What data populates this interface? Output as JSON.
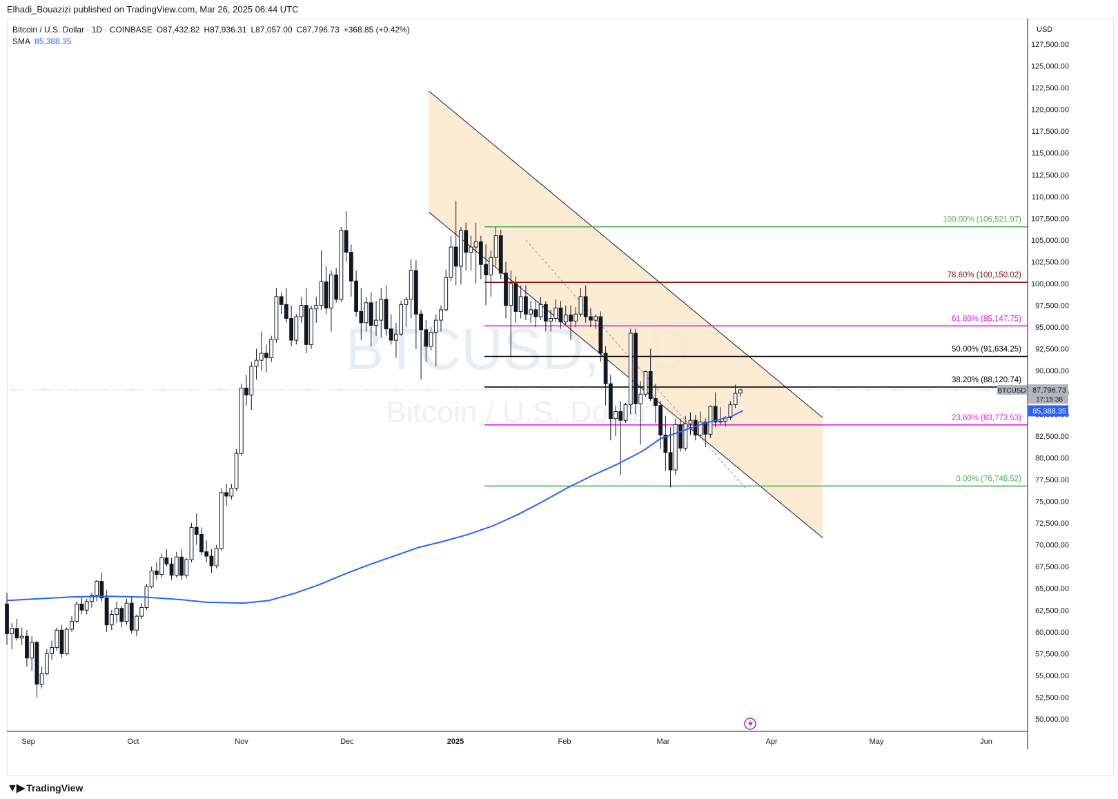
{
  "publisher": "Elhadi_Bouazizi published on TradingView.com, Mar 26, 2025 06:44 UTC",
  "brand": "TradingView",
  "legend": {
    "symbol": "Bitcoin / U.S. Dollar · 1D · COINBASE",
    "open": "O87,432.82",
    "high": "H87,936.31",
    "low": "L87,057.00",
    "close": "C87,796.73",
    "change": "+368.85 (+0.42%)",
    "sma_label": "SMA",
    "sma_value": "85,388.35"
  },
  "watermark": {
    "ticker": "BTCUSD, 1D",
    "name": "Bitcoin / U.S. Dollar"
  },
  "colors": {
    "up": "#131722",
    "down": "#131722",
    "sma": "#2962ff",
    "channel": "#fde9cd",
    "fib_green": "#4caf50",
    "fib_red": "#880e0e",
    "fib_magenta": "#e91ee3",
    "fib_black": "#000000",
    "price_badge": "#b2b5be"
  },
  "chart_data": {
    "type": "candlestick",
    "currency": "USD",
    "y_axis": {
      "min": 49000,
      "max": 129000,
      "ticks": [
        50000,
        52500,
        55000,
        57500,
        60000,
        62500,
        65000,
        67500,
        70000,
        72500,
        75000,
        77500,
        80000,
        82500,
        85000,
        87500,
        90000,
        92500,
        95000,
        97500,
        100000,
        102500,
        105000,
        107500,
        110000,
        112500,
        115000,
        117500,
        120000,
        122500,
        125000,
        127500
      ]
    },
    "x_axis": {
      "labels": [
        "Sep",
        "Oct",
        "Nov",
        "Dec",
        "2025",
        "Feb",
        "Mar",
        "Apr",
        "May",
        "Jun"
      ]
    },
    "current_price": {
      "label": "BTCUSD",
      "value": "87,796.73",
      "countdown": "17:15:38",
      "price": 87796.73
    },
    "sma": {
      "label": "SMA",
      "value": "85,388.35",
      "price": 85388.35,
      "points": [
        [
          0,
          63600
        ],
        [
          12,
          63800
        ],
        [
          25,
          64000
        ],
        [
          40,
          64100
        ],
        [
          55,
          64000
        ],
        [
          70,
          63700
        ],
        [
          80,
          63400
        ],
        [
          95,
          63300
        ],
        [
          105,
          63600
        ],
        [
          115,
          64400
        ],
        [
          125,
          65400
        ],
        [
          135,
          66600
        ],
        [
          145,
          67700
        ],
        [
          155,
          68700
        ],
        [
          165,
          69700
        ],
        [
          175,
          70400
        ],
        [
          185,
          71200
        ],
        [
          195,
          72200
        ],
        [
          205,
          73500
        ],
        [
          215,
          75000
        ],
        [
          225,
          76600
        ],
        [
          235,
          78000
        ],
        [
          245,
          79300
        ],
        [
          255,
          80800
        ],
        [
          262,
          82200
        ],
        [
          270,
          83000
        ],
        [
          280,
          84000
        ],
        [
          290,
          84700
        ],
        [
          295,
          85400
        ]
      ]
    },
    "candles": [
      [
        0,
        63200,
        64500,
        58500,
        59800
      ],
      [
        1,
        59800,
        61000,
        58000,
        60400
      ],
      [
        2,
        60400,
        61500,
        59000,
        59300
      ],
      [
        3,
        59300,
        60500,
        58500,
        59500
      ],
      [
        4,
        59500,
        60200,
        56000,
        57000
      ],
      [
        5,
        57000,
        59500,
        55500,
        58800
      ],
      [
        6,
        58800,
        59000,
        52500,
        54000
      ],
      [
        7,
        54000,
        56000,
        53500,
        55200
      ],
      [
        8,
        55200,
        58000,
        55000,
        57500
      ],
      [
        9,
        57500,
        59000,
        56800,
        58200
      ],
      [
        10,
        58200,
        60500,
        57800,
        60200
      ],
      [
        11,
        60200,
        60800,
        57000,
        57500
      ],
      [
        12,
        57500,
        60500,
        57300,
        60300
      ],
      [
        13,
        60300,
        61800,
        60000,
        61200
      ],
      [
        14,
        61200,
        63500,
        61000,
        63200
      ],
      [
        15,
        63200,
        64000,
        62000,
        62500
      ],
      [
        16,
        62500,
        63800,
        62000,
        63500
      ],
      [
        17,
        63500,
        64500,
        62800,
        64200
      ],
      [
        18,
        64200,
        66000,
        63500,
        65800
      ],
      [
        19,
        65800,
        66800,
        63500,
        63900
      ],
      [
        20,
        63900,
        64800,
        60000,
        60800
      ],
      [
        21,
        60800,
        62500,
        60200,
        62000
      ],
      [
        22,
        62000,
        63500,
        61000,
        62700
      ],
      [
        23,
        62700,
        63000,
        60500,
        61200
      ],
      [
        24,
        61200,
        63800,
        60800,
        63300
      ],
      [
        25,
        63300,
        64000,
        59800,
        60200
      ],
      [
        26,
        60200,
        62000,
        59500,
        61800
      ],
      [
        27,
        61800,
        63300,
        61500,
        62800
      ],
      [
        28,
        62800,
        65500,
        62500,
        65200
      ],
      [
        29,
        65200,
        67500,
        65000,
        67000
      ],
      [
        30,
        67000,
        68000,
        66000,
        66600
      ],
      [
        31,
        66600,
        69000,
        66200,
        68500
      ],
      [
        32,
        68500,
        69500,
        67500,
        67800
      ],
      [
        33,
        67800,
        68500,
        66000,
        66500
      ],
      [
        34,
        66500,
        69200,
        66200,
        68600
      ],
      [
        35,
        68600,
        69500,
        66000,
        66500
      ],
      [
        36,
        66500,
        68500,
        66200,
        68300
      ],
      [
        37,
        68300,
        72500,
        68000,
        72000
      ],
      [
        38,
        72000,
        73600,
        70000,
        71200
      ],
      [
        39,
        71200,
        72000,
        68800,
        69200
      ],
      [
        40,
        69200,
        70500,
        68000,
        68700
      ],
      [
        41,
        68700,
        69500,
        66800,
        67600
      ],
      [
        42,
        67600,
        70000,
        67300,
        69600
      ],
      [
        43,
        69600,
        76500,
        69300,
        76000
      ],
      [
        44,
        76000,
        77000,
        74500,
        75600
      ],
      [
        45,
        75600,
        77000,
        75200,
        76500
      ],
      [
        46,
        76500,
        81000,
        76200,
        80500
      ],
      [
        47,
        80500,
        88500,
        80200,
        88000
      ],
      [
        48,
        88000,
        89500,
        86000,
        87200
      ],
      [
        49,
        87200,
        91000,
        85500,
        90500
      ],
      [
        50,
        90500,
        92500,
        89000,
        91200
      ],
      [
        51,
        91200,
        94500,
        90000,
        92000
      ],
      [
        52,
        92000,
        93000,
        89800,
        91500
      ],
      [
        53,
        91500,
        94000,
        91000,
        93600
      ],
      [
        54,
        93600,
        99500,
        93200,
        98500
      ],
      [
        55,
        98500,
        99000,
        96500,
        97600
      ],
      [
        56,
        97600,
        99500,
        95500,
        96000
      ],
      [
        57,
        96000,
        97500,
        92800,
        93500
      ],
      [
        58,
        93500,
        96500,
        93000,
        96200
      ],
      [
        59,
        96200,
        98500,
        95500,
        97500
      ],
      [
        60,
        97500,
        99500,
        92000,
        93000
      ],
      [
        61,
        93000,
        97500,
        92500,
        97100
      ],
      [
        62,
        97100,
        98500,
        95500,
        97500
      ],
      [
        63,
        97500,
        103800,
        97000,
        100200
      ],
      [
        64,
        100200,
        102000,
        96500,
        97200
      ],
      [
        65,
        97200,
        101500,
        94500,
        101000
      ],
      [
        66,
        101000,
        101800,
        97800,
        98200
      ],
      [
        67,
        98200,
        106500,
        97900,
        106100
      ],
      [
        68,
        106100,
        108300,
        102500,
        103600
      ],
      [
        69,
        103600,
        104500,
        98500,
        100300
      ],
      [
        70,
        100300,
        101500,
        96200,
        96800
      ],
      [
        71,
        96800,
        99500,
        93500,
        95500
      ],
      [
        72,
        95500,
        98500,
        94500,
        97800
      ],
      [
        73,
        97800,
        99000,
        92800,
        95200
      ],
      [
        74,
        95200,
        98000,
        94000,
        95800
      ],
      [
        75,
        95800,
        99500,
        93800,
        98200
      ],
      [
        76,
        98200,
        99800,
        94000,
        94800
      ],
      [
        77,
        94800,
        96500,
        93000,
        93500
      ],
      [
        78,
        93500,
        95500,
        91500,
        94200
      ],
      [
        79,
        94200,
        98000,
        94000,
        97600
      ],
      [
        80,
        97600,
        98500,
        95000,
        98200
      ],
      [
        81,
        98200,
        102800,
        96000,
        101500
      ],
      [
        82,
        101500,
        102700,
        92500,
        96500
      ],
      [
        83,
        96500,
        97000,
        89000,
        94700
      ],
      [
        84,
        94700,
        95800,
        91000,
        92800
      ],
      [
        85,
        92800,
        95000,
        92300,
        94400
      ],
      [
        86,
        94400,
        96500,
        90500,
        95800
      ],
      [
        87,
        95800,
        97500,
        94500,
        97000
      ],
      [
        88,
        97000,
        101600,
        96800,
        100700
      ],
      [
        89,
        100700,
        105500,
        100300,
        104200
      ],
      [
        90,
        104200,
        109500,
        99800,
        102000
      ],
      [
        91,
        102000,
        106500,
        99900,
        106100
      ],
      [
        92,
        106100,
        107000,
        101500,
        103600
      ],
      [
        93,
        103600,
        105500,
        101500,
        104200
      ],
      [
        94,
        104200,
        107000,
        100000,
        104800
      ],
      [
        95,
        104800,
        105500,
        100500,
        102200
      ],
      [
        96,
        102200,
        104500,
        97500,
        101000
      ],
      [
        97,
        101000,
        103800,
        98500,
        103000
      ],
      [
        98,
        103000,
        106500,
        102000,
        105500
      ],
      [
        99,
        105500,
        106200,
        100500,
        101200
      ],
      [
        100,
        101200,
        102500,
        96000,
        97500
      ],
      [
        101,
        97500,
        101500,
        91500,
        100000
      ],
      [
        102,
        100000,
        100800,
        95500,
        96800
      ],
      [
        103,
        96800,
        99800,
        96000,
        98500
      ],
      [
        104,
        98500,
        99800,
        95800,
        96500
      ],
      [
        105,
        96500,
        98000,
        95500,
        97000
      ],
      [
        106,
        97000,
        98000,
        95000,
        96200
      ],
      [
        107,
        96200,
        98500,
        95800,
        97600
      ],
      [
        108,
        97600,
        98000,
        94500,
        95700
      ],
      [
        109,
        95700,
        97000,
        94500,
        96000
      ],
      [
        110,
        96000,
        98200,
        95600,
        97200
      ],
      [
        111,
        97200,
        98000,
        94800,
        95600
      ],
      [
        112,
        95600,
        97500,
        95200,
        96400
      ],
      [
        113,
        96400,
        97500,
        93500,
        95700
      ],
      [
        114,
        95700,
        97300,
        95000,
        96500
      ],
      [
        115,
        96500,
        99500,
        96200,
        98500
      ],
      [
        116,
        98500,
        99800,
        95500,
        96200
      ],
      [
        117,
        96200,
        97200,
        95000,
        95800
      ],
      [
        118,
        95800,
        96500,
        94800,
        96200
      ],
      [
        119,
        96200,
        96800,
        91000,
        92000
      ],
      [
        120,
        92000,
        92800,
        86000,
        88500
      ],
      [
        121,
        88500,
        89500,
        82000,
        84500
      ],
      [
        122,
        84500,
        86000,
        82500,
        85300
      ],
      [
        123,
        85300,
        86500,
        78000,
        84300
      ],
      [
        124,
        84300,
        86300,
        84000,
        86100
      ],
      [
        125,
        86100,
        94800,
        85000,
        94300
      ],
      [
        126,
        94300,
        94800,
        85000,
        86200
      ],
      [
        127,
        86200,
        88800,
        81500,
        87300
      ],
      [
        128,
        87300,
        90000,
        87000,
        89900
      ],
      [
        129,
        89900,
        92500,
        86500,
        86800
      ],
      [
        130,
        86800,
        88500,
        84000,
        86000
      ],
      [
        131,
        86000,
        86500,
        81000,
        82600
      ],
      [
        132,
        82600,
        84800,
        78500,
        80600
      ],
      [
        133,
        80600,
        83500,
        76600,
        78600
      ],
      [
        134,
        78600,
        84500,
        78000,
        83800
      ],
      [
        135,
        83800,
        84500,
        80700,
        81100
      ],
      [
        136,
        81100,
        84800,
        80800,
        83900
      ],
      [
        137,
        83900,
        85200,
        82600,
        84300
      ],
      [
        138,
        84300,
        84900,
        82000,
        82600
      ],
      [
        139,
        82600,
        85300,
        82300,
        84100
      ],
      [
        140,
        84100,
        84500,
        81200,
        82700
      ],
      [
        141,
        82700,
        86000,
        82300,
        85900
      ],
      [
        142,
        85900,
        87500,
        83500,
        84100
      ],
      [
        143,
        84100,
        85800,
        83800,
        84200
      ],
      [
        144,
        84200,
        84800,
        83600,
        84600
      ],
      [
        145,
        84600,
        86500,
        84300,
        86100
      ],
      [
        146,
        86100,
        88400,
        85700,
        87400
      ],
      [
        147,
        87432.82,
        87936.31,
        87057,
        87796.73
      ]
    ],
    "channel": {
      "upper": [
        [
          84.6,
          122100
        ],
        [
          163.5,
          84600
        ]
      ],
      "lower": [
        [
          84.6,
          108200
        ],
        [
          163.5,
          70800
        ]
      ],
      "midline": [
        [
          104,
          105000
        ],
        [
          148,
          76500
        ]
      ]
    },
    "fibonacci": [
      {
        "label": "100.00% (106,521.97)",
        "price": 106521.97,
        "color": "#4caf50"
      },
      {
        "label": "78.60% (100,150.02)",
        "price": 100150.02,
        "color": "#880e0e"
      },
      {
        "label": "61.80% (95,147.75)",
        "price": 95147.75,
        "color": "#e91ee3"
      },
      {
        "label": "50.00% (91,634.25)",
        "price": 91634.25,
        "color": "#000000"
      },
      {
        "label": "38.20% (88,120.74)",
        "price": 88120.74,
        "color": "#000000"
      },
      {
        "label": "23.60% (83,773.53)",
        "price": 83773.53,
        "color": "#e91ee3"
      },
      {
        "label": "0.00% (76,746.52)",
        "price": 76746.52,
        "color": "#4caf50"
      }
    ]
  }
}
